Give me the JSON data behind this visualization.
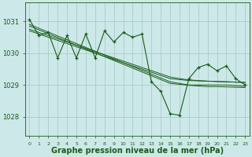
{
  "background_color": "#cce8e8",
  "plot_bg_color": "#cce8e8",
  "grid_color": "#aacccc",
  "line_color": "#1a5c1a",
  "marker_color": "#1a5c1a",
  "xlabel": "Graphe pression niveau de la mer (hPa)",
  "xlabel_fontsize": 7.0,
  "yticks": [
    1028,
    1029,
    1030,
    1031
  ],
  "ylim": [
    1027.4,
    1031.6
  ],
  "xlim": [
    -0.5,
    23.5
  ],
  "xtick_labels": [
    "0",
    "1",
    "2",
    "3",
    "4",
    "5",
    "6",
    "7",
    "8",
    "9",
    "10",
    "11",
    "12",
    "13",
    "14",
    "15",
    "16",
    "17",
    "18",
    "19",
    "20",
    "21",
    "22",
    "23"
  ],
  "trend_lines": [
    [
      1030.9,
      1030.78,
      1030.66,
      1030.54,
      1030.42,
      1030.3,
      1030.18,
      1030.06,
      1029.94,
      1029.82,
      1029.7,
      1029.58,
      1029.46,
      1029.34,
      1029.22,
      1029.1,
      1029.05,
      1029.0,
      1029.0,
      1029.0,
      1029.0,
      1029.0,
      1028.98,
      1028.96
    ],
    [
      1030.85,
      1030.73,
      1030.61,
      1030.49,
      1030.37,
      1030.25,
      1030.13,
      1030.01,
      1029.89,
      1029.77,
      1029.65,
      1029.53,
      1029.41,
      1029.29,
      1029.17,
      1029.05,
      1029.02,
      1028.99,
      1028.97,
      1028.95,
      1028.95,
      1028.94,
      1028.93,
      1028.92
    ],
    [
      1030.75,
      1030.65,
      1030.55,
      1030.45,
      1030.35,
      1030.25,
      1030.15,
      1030.05,
      1029.95,
      1029.85,
      1029.75,
      1029.65,
      1029.55,
      1029.45,
      1029.35,
      1029.25,
      1029.2,
      1029.16,
      1029.14,
      1029.12,
      1029.11,
      1029.1,
      1029.09,
      1029.08
    ],
    [
      1030.7,
      1030.6,
      1030.5,
      1030.4,
      1030.3,
      1030.2,
      1030.1,
      1030.0,
      1029.9,
      1029.8,
      1029.7,
      1029.6,
      1029.5,
      1029.4,
      1029.3,
      1029.2,
      1029.17,
      1029.14,
      1029.13,
      1029.12,
      1029.11,
      1029.1,
      1029.09,
      1029.08
    ]
  ],
  "main_series_x": [
    0,
    1,
    2,
    3,
    4,
    5,
    6,
    7,
    8,
    9,
    10,
    11,
    12,
    13,
    14,
    15,
    16,
    17,
    18,
    19,
    20,
    21,
    22,
    23
  ],
  "main_series_y": [
    1031.05,
    1030.55,
    1030.65,
    1029.85,
    1030.55,
    1029.85,
    1030.6,
    1029.85,
    1030.7,
    1030.35,
    1030.65,
    1030.5,
    1030.6,
    1029.1,
    1028.8,
    1028.1,
    1028.05,
    1029.2,
    1029.55,
    1029.65,
    1029.45,
    1029.6,
    1029.2,
    1029.0
  ]
}
